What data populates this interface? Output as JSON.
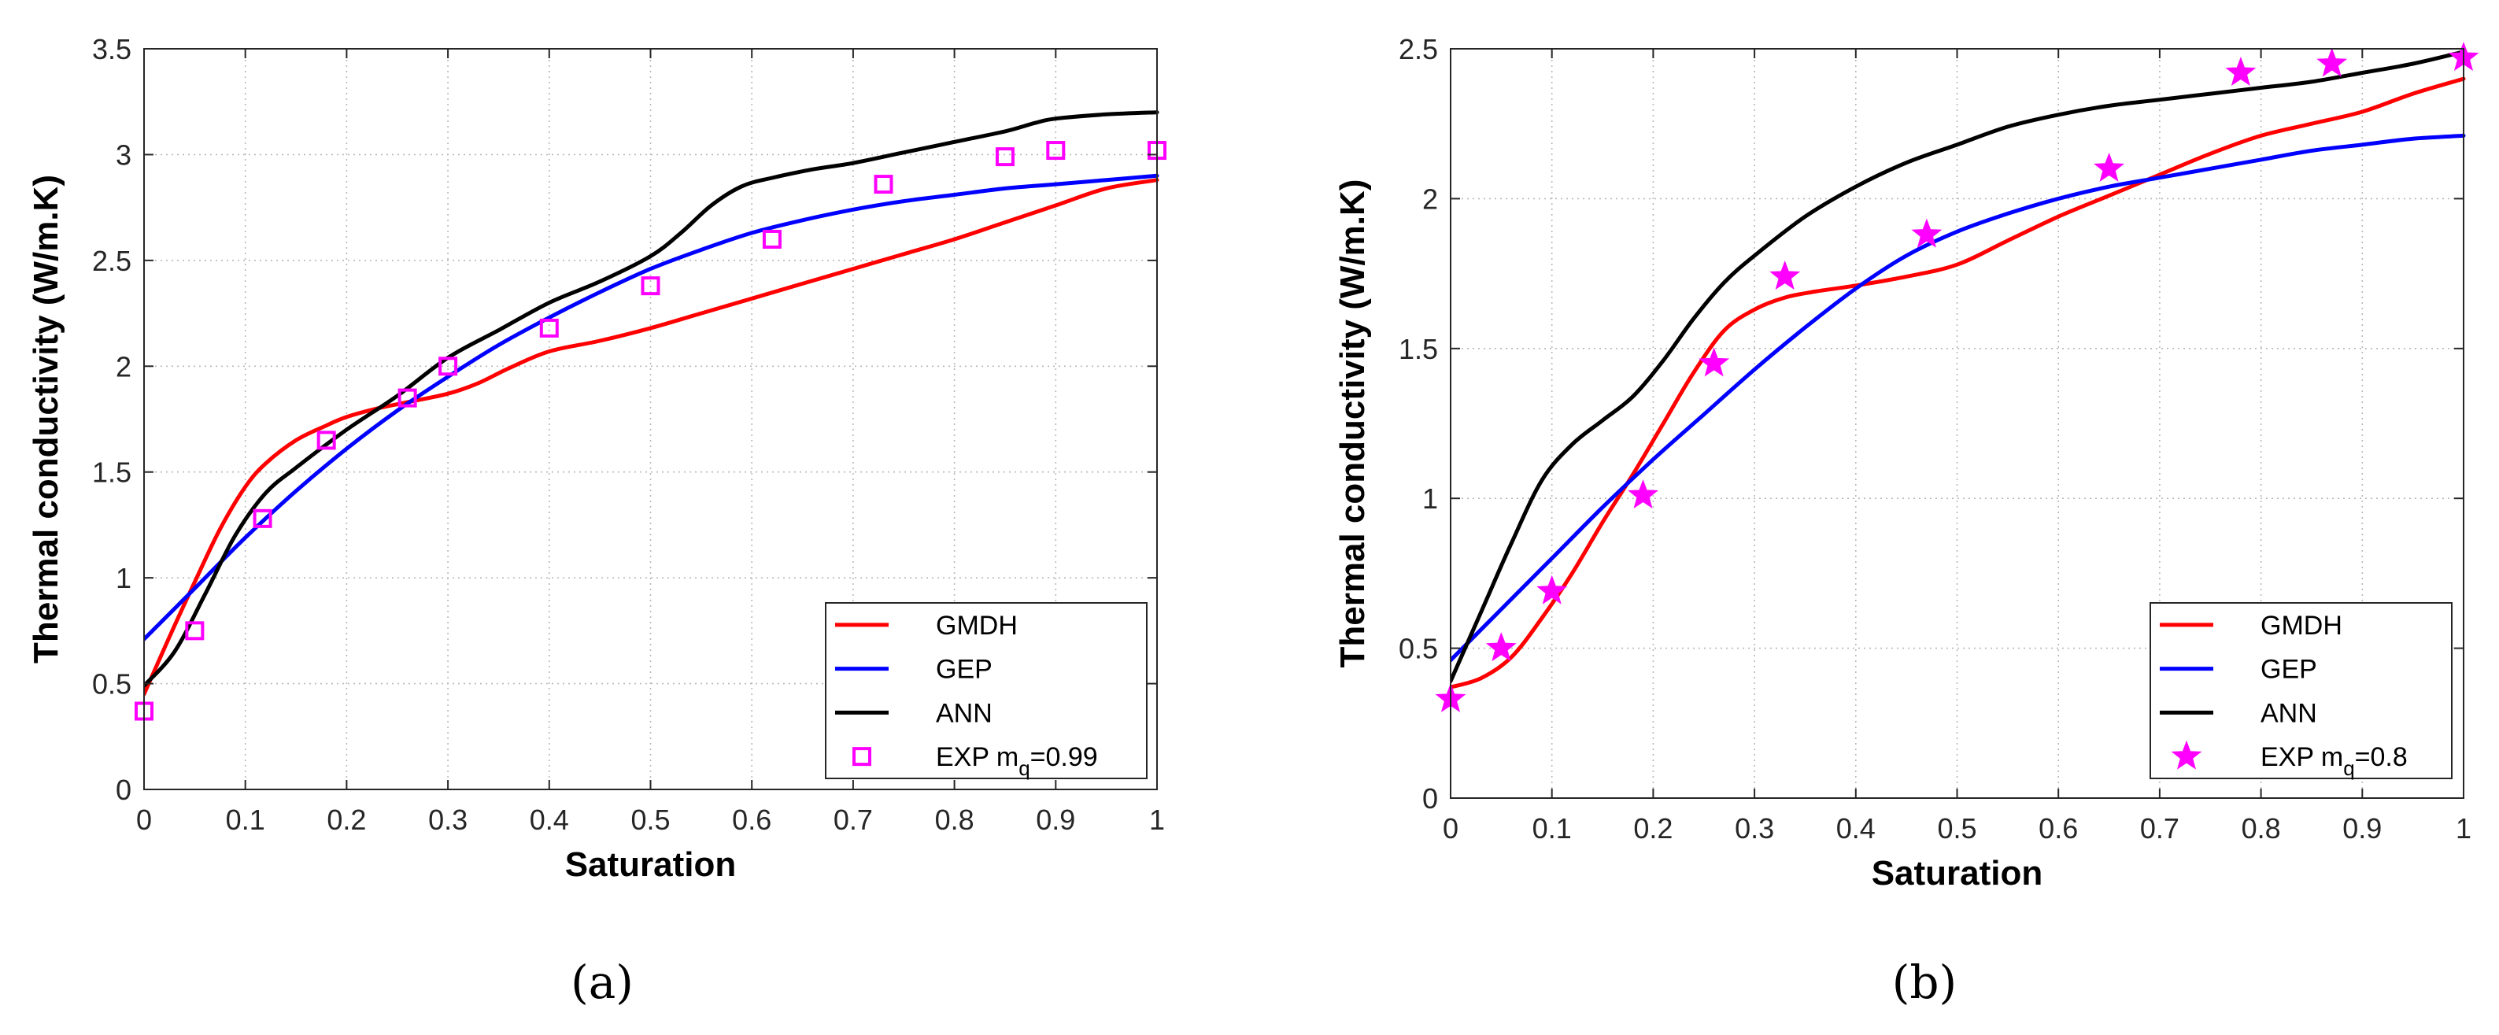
{
  "chart_data": [
    {
      "type": "line",
      "panel_label": "(a)",
      "title": "",
      "xlabel": "Saturation",
      "ylabel": "Thermal conductivity (W/m.K)",
      "xlim": [
        0,
        1
      ],
      "ylim": [
        0,
        3.5
      ],
      "xticks": [
        0,
        0.1,
        0.2,
        0.3,
        0.4,
        0.5,
        0.6,
        0.7,
        0.8,
        0.9,
        1
      ],
      "xtick_labels": [
        "0",
        "0.1",
        "0.2",
        "0.3",
        "0.4",
        "0.5",
        "0.6",
        "0.7",
        "0.8",
        "0.9",
        "1"
      ],
      "yticks": [
        0,
        0.5,
        1,
        1.5,
        2,
        2.5,
        3,
        3.5
      ],
      "ytick_labels": [
        "0",
        "0.5",
        "1",
        "1.5",
        "2",
        "2.5",
        "3",
        "3.5"
      ],
      "grid": true,
      "legend_position": "bottom-right",
      "series": [
        {
          "name": "GMDH",
          "color": "#ff0000",
          "style": "line",
          "x": [
            0,
            0.025,
            0.05,
            0.075,
            0.1,
            0.12,
            0.15,
            0.18,
            0.2,
            0.23,
            0.26,
            0.3,
            0.33,
            0.36,
            0.4,
            0.45,
            0.5,
            0.55,
            0.6,
            0.65,
            0.7,
            0.75,
            0.8,
            0.85,
            0.9,
            0.95,
            1
          ],
          "y": [
            0.45,
            0.72,
            0.98,
            1.23,
            1.43,
            1.54,
            1.65,
            1.72,
            1.76,
            1.8,
            1.83,
            1.87,
            1.92,
            1.99,
            2.07,
            2.12,
            2.18,
            2.25,
            2.32,
            2.39,
            2.46,
            2.53,
            2.6,
            2.68,
            2.76,
            2.84,
            2.88
          ]
        },
        {
          "name": "GEP",
          "color": "#0000ff",
          "style": "line",
          "x": [
            0,
            0.05,
            0.1,
            0.15,
            0.2,
            0.25,
            0.3,
            0.35,
            0.4,
            0.45,
            0.5,
            0.55,
            0.6,
            0.65,
            0.7,
            0.75,
            0.8,
            0.85,
            0.9,
            0.95,
            1
          ],
          "y": [
            0.71,
            0.95,
            1.19,
            1.41,
            1.61,
            1.79,
            1.95,
            2.1,
            2.23,
            2.35,
            2.46,
            2.55,
            2.63,
            2.69,
            2.74,
            2.78,
            2.81,
            2.84,
            2.86,
            2.88,
            2.9
          ]
        },
        {
          "name": "ANN",
          "color": "#000000",
          "style": "line",
          "x": [
            0,
            0.03,
            0.06,
            0.09,
            0.12,
            0.15,
            0.2,
            0.25,
            0.3,
            0.35,
            0.4,
            0.45,
            0.5,
            0.53,
            0.56,
            0.59,
            0.62,
            0.66,
            0.7,
            0.75,
            0.8,
            0.85,
            0.88,
            0.9,
            0.95,
            1
          ],
          "y": [
            0.49,
            0.65,
            0.92,
            1.2,
            1.4,
            1.52,
            1.7,
            1.86,
            2.04,
            2.17,
            2.3,
            2.4,
            2.52,
            2.63,
            2.76,
            2.85,
            2.89,
            2.93,
            2.96,
            3.01,
            3.06,
            3.11,
            3.15,
            3.17,
            3.19,
            3.2
          ]
        },
        {
          "name": "EXP m_q=0.99",
          "color": "#ff00ff",
          "style": "marker",
          "marker": "square",
          "x": [
            0,
            0.05,
            0.117,
            0.18,
            0.26,
            0.3,
            0.4,
            0.5,
            0.62,
            0.73,
            0.85,
            0.9,
            1
          ],
          "y": [
            0.37,
            0.75,
            1.28,
            1.65,
            1.85,
            2.0,
            2.18,
            2.38,
            2.6,
            2.86,
            2.99,
            3.02,
            3.02
          ]
        }
      ]
    },
    {
      "type": "line",
      "panel_label": "(b)",
      "title": "",
      "xlabel": "Saturation",
      "ylabel": "Thermal conductivity (W/m.K)",
      "xlim": [
        0,
        1
      ],
      "ylim": [
        0,
        2.5
      ],
      "xticks": [
        0,
        0.1,
        0.2,
        0.3,
        0.4,
        0.5,
        0.6,
        0.7,
        0.8,
        0.9,
        1
      ],
      "xtick_labels": [
        "0",
        "0.1",
        "0.2",
        "0.3",
        "0.4",
        "0.5",
        "0.6",
        "0.7",
        "0.8",
        "0.9",
        "1"
      ],
      "yticks": [
        0,
        0.5,
        1,
        1.5,
        2,
        2.5
      ],
      "ytick_labels": [
        "0",
        "0.5",
        "1",
        "1.5",
        "2",
        "2.5"
      ],
      "grid": true,
      "legend_position": "bottom-right",
      "series": [
        {
          "name": "GMDH",
          "color": "#ff0000",
          "style": "line",
          "x": [
            0,
            0.03,
            0.06,
            0.09,
            0.12,
            0.15,
            0.18,
            0.21,
            0.24,
            0.27,
            0.3,
            0.33,
            0.36,
            0.4,
            0.45,
            0.5,
            0.55,
            0.6,
            0.65,
            0.7,
            0.75,
            0.8,
            0.85,
            0.9,
            0.95,
            1
          ],
          "y": [
            0.37,
            0.4,
            0.47,
            0.6,
            0.75,
            0.92,
            1.08,
            1.25,
            1.42,
            1.56,
            1.63,
            1.67,
            1.69,
            1.71,
            1.74,
            1.78,
            1.86,
            1.94,
            2.01,
            2.08,
            2.15,
            2.21,
            2.25,
            2.29,
            2.35,
            2.4
          ]
        },
        {
          "name": "GEP",
          "color": "#0000ff",
          "style": "line",
          "x": [
            0,
            0.05,
            0.1,
            0.15,
            0.2,
            0.25,
            0.3,
            0.35,
            0.4,
            0.45,
            0.5,
            0.55,
            0.6,
            0.65,
            0.7,
            0.75,
            0.8,
            0.85,
            0.9,
            0.95,
            1
          ],
          "y": [
            0.46,
            0.63,
            0.8,
            0.97,
            1.13,
            1.28,
            1.43,
            1.57,
            1.7,
            1.81,
            1.89,
            1.95,
            2.0,
            2.04,
            2.07,
            2.1,
            2.13,
            2.16,
            2.18,
            2.2,
            2.21
          ]
        },
        {
          "name": "ANN",
          "color": "#000000",
          "style": "line",
          "x": [
            0,
            0.03,
            0.06,
            0.09,
            0.12,
            0.15,
            0.18,
            0.21,
            0.24,
            0.27,
            0.3,
            0.35,
            0.4,
            0.45,
            0.5,
            0.55,
            0.6,
            0.65,
            0.7,
            0.75,
            0.8,
            0.85,
            0.9,
            0.95,
            1
          ],
          "y": [
            0.39,
            0.62,
            0.85,
            1.06,
            1.18,
            1.26,
            1.34,
            1.46,
            1.6,
            1.72,
            1.81,
            1.94,
            2.04,
            2.12,
            2.18,
            2.24,
            2.28,
            2.31,
            2.33,
            2.35,
            2.37,
            2.39,
            2.42,
            2.45,
            2.49
          ]
        },
        {
          "name": "EXP m_q=0.8",
          "color": "#ff00ff",
          "style": "marker",
          "marker": "star",
          "x": [
            0,
            0.05,
            0.1,
            0.19,
            0.26,
            0.33,
            0.47,
            0.65,
            0.78,
            0.87,
            1
          ],
          "y": [
            0.33,
            0.5,
            0.69,
            1.01,
            1.45,
            1.74,
            1.88,
            2.1,
            2.42,
            2.45,
            2.47
          ]
        }
      ]
    }
  ]
}
